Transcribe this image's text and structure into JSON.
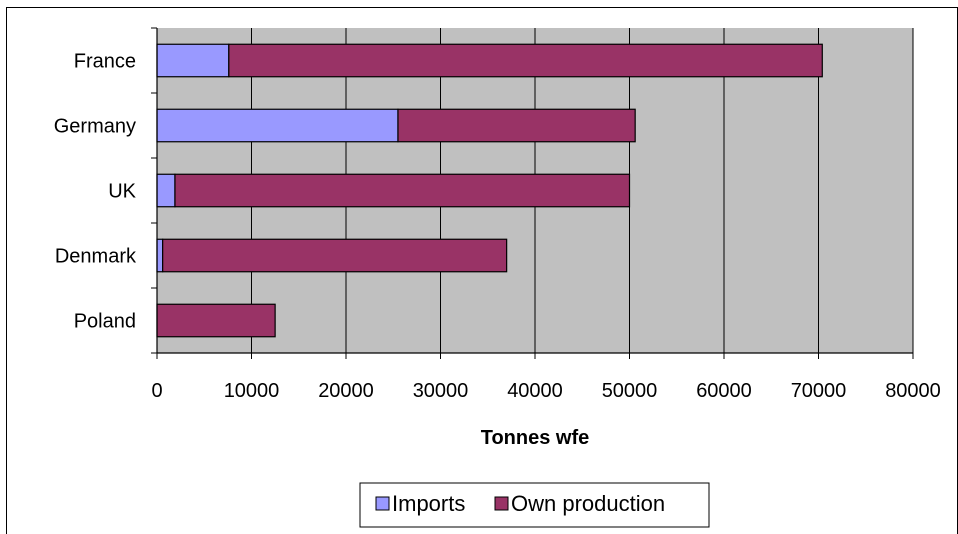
{
  "chart_data": {
    "type": "bar",
    "orientation": "horizontal",
    "stacked": true,
    "categories": [
      "France",
      "Germany",
      "UK",
      "Denmark",
      "Poland"
    ],
    "series": [
      {
        "name": "Imports",
        "values": [
          7600,
          25500,
          1900,
          600,
          0
        ],
        "color": "#9999ff"
      },
      {
        "name": "Own production",
        "values": [
          62800,
          25100,
          48100,
          36400,
          12500
        ],
        "color": "#993366"
      }
    ],
    "xlabel": "Tonnes wfe",
    "ylabel": "",
    "xlim": [
      0,
      80000
    ],
    "xticks": [
      "0",
      "10000",
      "20000",
      "30000",
      "40000",
      "50000",
      "60000",
      "70000",
      "80000"
    ],
    "grid": true,
    "plot_background": "#c0c0c0",
    "legend_position": "bottom"
  }
}
